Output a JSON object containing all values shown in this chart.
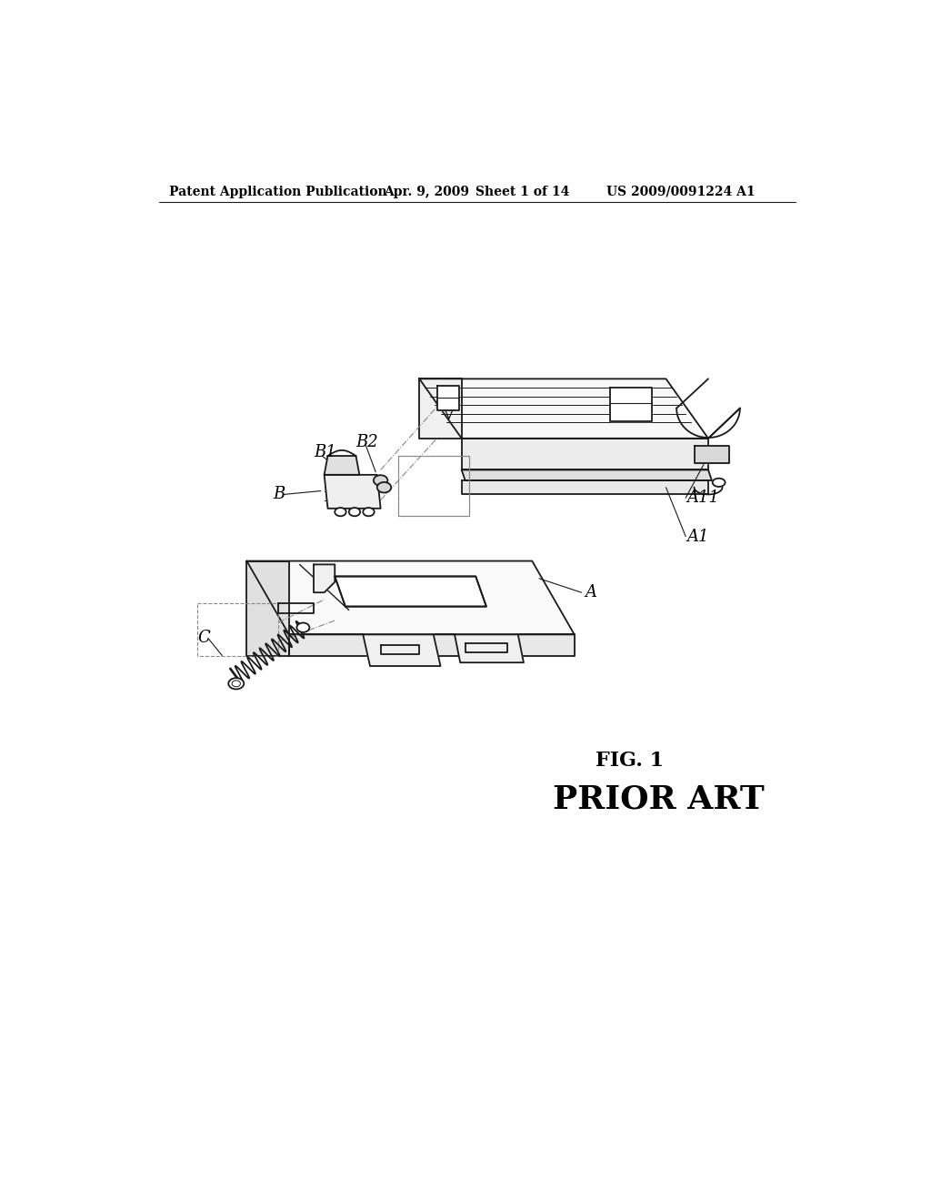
{
  "background_color": "#ffffff",
  "header_text": "Patent Application Publication",
  "header_date": "Apr. 9, 2009",
  "header_sheet": "Sheet 1 of 14",
  "header_patent": "US 2009/0091224 A1",
  "fig_label": "FIG. 1",
  "fig_sublabel": "PRIOR ART",
  "line_color": "#1a1a1a",
  "line_width": 1.3,
  "fig_label_fontsize": 16,
  "prior_art_fontsize": 26,
  "header_fontsize": 10
}
